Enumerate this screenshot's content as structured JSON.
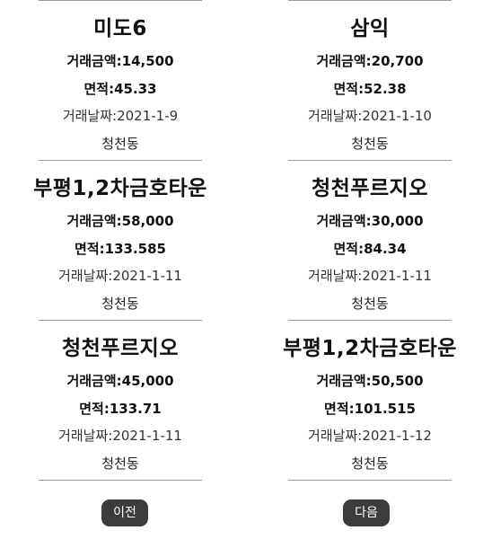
{
  "listings_left": [
    {
      "name": "미도6",
      "price_label": "거래금액:",
      "price": "14,500",
      "area_label": "면적:",
      "area": "45.33",
      "date_label": "거래날짜:",
      "date": "2021-1-9",
      "dong": "청천동"
    },
    {
      "name": "부평1,2차금호타운",
      "price_label": "거래금액:",
      "price": "58,000",
      "area_label": "면적:",
      "area": "133.585",
      "date_label": "거래날짜:",
      "date": "2021-1-11",
      "dong": "청천동"
    },
    {
      "name": "청천푸르지오",
      "price_label": "거래금액:",
      "price": "45,000",
      "area_label": "면적:",
      "area": "133.71",
      "date_label": "거래날짜:",
      "date": "2021-1-11",
      "dong": "청천동"
    }
  ],
  "listings_right": [
    {
      "name": "삼익",
      "price_label": "거래금액:",
      "price": "20,700",
      "area_label": "면적:",
      "area": "52.38",
      "date_label": "거래날짜:",
      "date": "2021-1-10",
      "dong": "청천동"
    },
    {
      "name": "청천푸르지오",
      "price_label": "거래금액:",
      "price": "30,000",
      "area_label": "면적:",
      "area": "84.34",
      "date_label": "거래날짜:",
      "date": "2021-1-11",
      "dong": "청천동"
    },
    {
      "name": "부평1,2차금호타운",
      "price_label": "거래금액:",
      "price": "50,500",
      "area_label": "면적:",
      "area": "101.515",
      "date_label": "거래날짜:",
      "date": "2021-1-12",
      "dong": "청천동"
    }
  ],
  "pagination": {
    "prev_label": "이전",
    "next_label": "다음"
  }
}
